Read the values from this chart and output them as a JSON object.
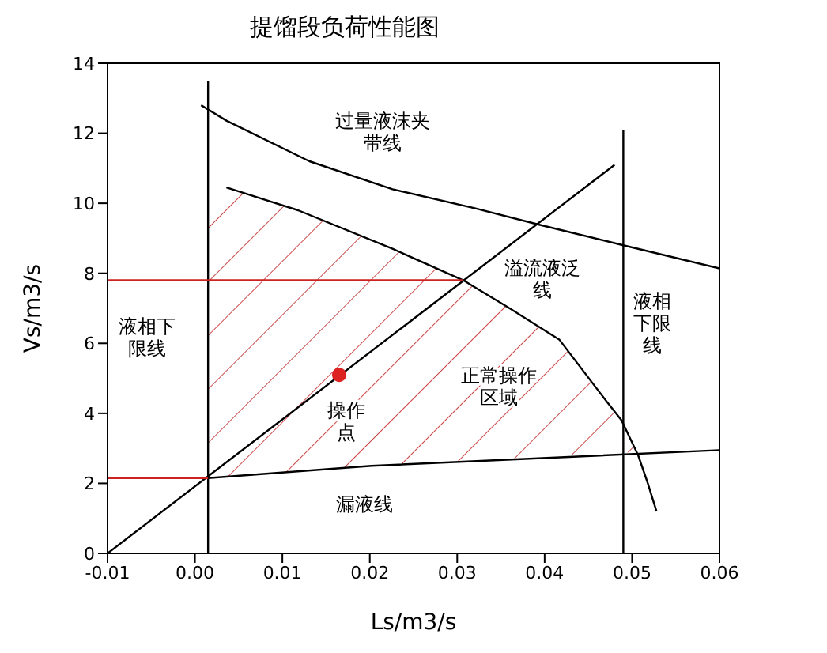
{
  "chart_data": {
    "type": "line",
    "title": "提馏段负荷性能图",
    "xlabel": "Ls/m3/s",
    "ylabel": "Vs/m3/s",
    "xlim": [
      -0.01,
      0.06
    ],
    "ylim": [
      0,
      14
    ],
    "xticks": [
      -0.01,
      {
        "value": 0,
        "label": "0.00"
      },
      0.01,
      0.02,
      0.03,
      0.04,
      0.05,
      0.06
    ],
    "yticks": [
      0,
      2,
      4,
      6,
      8,
      10,
      12,
      14
    ],
    "grid": false,
    "legend": false,
    "marker": "none",
    "line_style": "solid",
    "series": [
      {
        "color": "#000000",
        "x": [
          0.0015,
          0.0015
        ],
        "values": [
          0,
          13.5
        ]
      },
      {
        "color": "#000000",
        "x": [
          0.049,
          0.049
        ],
        "values": [
          0,
          12.1
        ]
      },
      {
        "color": "#000000",
        "x": [
          0.0007,
          0.0036,
          0.0131,
          0.0226,
          0.032,
          0.0392,
          0.049,
          0.06
        ],
        "values": [
          12.8,
          12.36,
          11.2,
          10.4,
          9.86,
          9.4,
          8.8,
          8.14
        ]
      },
      {
        "color": "#000000",
        "x": [
          0.0036,
          0.0118,
          0.0226,
          0.0307,
          0.036,
          0.0417,
          0.0469,
          0.0488,
          0.0507,
          0.0518,
          0.0528
        ],
        "values": [
          10.45,
          9.8,
          8.7,
          7.8,
          7.0,
          6.1,
          4.4,
          3.8,
          2.8,
          2.0,
          1.2
        ]
      },
      {
        "color": "#000000",
        "x": [
          0.0015,
          0.0202,
          0.06
        ],
        "values": [
          2.15,
          2.5,
          2.95
        ]
      },
      {
        "color": "#000000",
        "x": [
          -0.01,
          0.0015,
          0.048
        ],
        "values": [
          0,
          2.2,
          11.1
        ]
      },
      {
        "color": "#cc2222",
        "x": [
          -0.01,
          0.0307
        ],
        "values": [
          7.8,
          7.8
        ]
      },
      {
        "color": "#cc2222",
        "x": [
          -0.01,
          0.0015
        ],
        "values": [
          2.15,
          2.15
        ]
      },
      {
        "type": "scatter",
        "color": "#dd2222",
        "marker": "circle",
        "x": [
          0.0165
        ],
        "values": [
          5.1
        ]
      }
    ],
    "annotations": [
      "过量液沫夹带线",
      "溢流液泛线",
      "液相下限线",
      "液相下限线",
      "操作点",
      "正常操作区域",
      "漏液线"
    ]
  }
}
